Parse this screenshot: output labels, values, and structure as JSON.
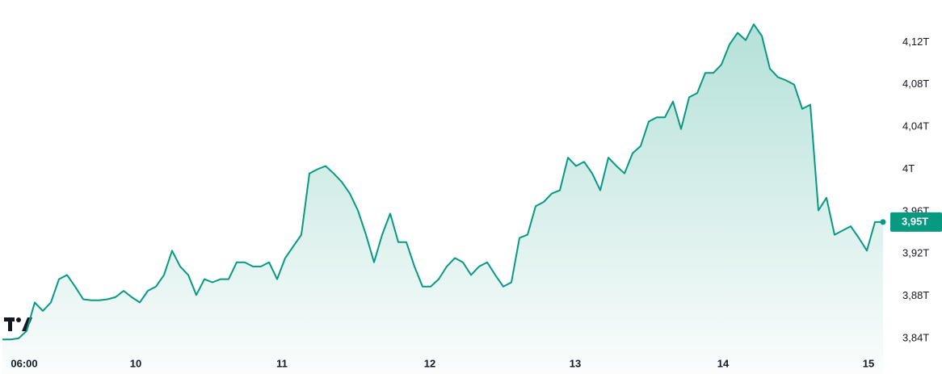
{
  "chart_data": {
    "type": "area",
    "values": [
      3.839,
      3.839,
      3.84,
      3.847,
      3.874,
      3.866,
      3.874,
      3.896,
      3.9,
      3.889,
      3.877,
      3.876,
      3.876,
      3.877,
      3.879,
      3.885,
      3.879,
      3.874,
      3.885,
      3.889,
      3.9,
      3.923,
      3.908,
      3.9,
      3.881,
      3.896,
      3.893,
      3.896,
      3.896,
      3.912,
      3.912,
      3.908,
      3.908,
      3.912,
      3.896,
      3.916,
      3.927,
      3.938,
      3.996,
      4.0,
      4.003,
      3.996,
      3.988,
      3.977,
      3.961,
      3.938,
      3.912,
      3.938,
      3.958,
      3.931,
      3.931,
      3.908,
      3.889,
      3.889,
      3.896,
      3.908,
      3.916,
      3.912,
      3.9,
      3.908,
      3.912,
      3.9,
      3.889,
      3.893,
      3.935,
      3.938,
      3.965,
      3.969,
      3.977,
      3.98,
      4.011,
      4.003,
      4.007,
      3.996,
      3.98,
      4.011,
      4.003,
      3.996,
      4.015,
      4.022,
      4.045,
      4.049,
      4.049,
      4.064,
      4.038,
      4.068,
      4.072,
      4.091,
      4.091,
      4.099,
      4.118,
      4.129,
      4.122,
      4.137,
      4.126,
      4.095,
      4.087,
      4.084,
      4.08,
      4.057,
      4.061,
      3.961,
      3.973,
      3.938,
      3.942,
      3.946,
      3.935,
      3.923,
      3.95,
      3.95
    ],
    "color": "#089981",
    "ylim": [
      3.83,
      4.16
    ],
    "yticks": [
      {
        "value": 3.84,
        "label": "3,84T"
      },
      {
        "value": 3.88,
        "label": "3,88T"
      },
      {
        "value": 3.92,
        "label": "3,92T"
      },
      {
        "value": 3.96,
        "label": "3,96T"
      },
      {
        "value": 4,
        "label": "4T"
      },
      {
        "value": 4.04,
        "label": "4,04T"
      },
      {
        "value": 4.08,
        "label": "4,08T"
      },
      {
        "value": 4.12,
        "label": "4,12T"
      }
    ],
    "xticks": [
      {
        "value": 2.7,
        "label": "06:00"
      },
      {
        "value": 16.5,
        "label": "10"
      },
      {
        "value": 34.6,
        "label": "11"
      },
      {
        "value": 52.9,
        "label": "12"
      },
      {
        "value": 70.9,
        "label": "13"
      },
      {
        "value": 89.2,
        "label": "14"
      },
      {
        "value": 107.2,
        "label": "15"
      }
    ],
    "last_price": {
      "value": 3.95,
      "label": "3,95T"
    },
    "grid": false
  }
}
